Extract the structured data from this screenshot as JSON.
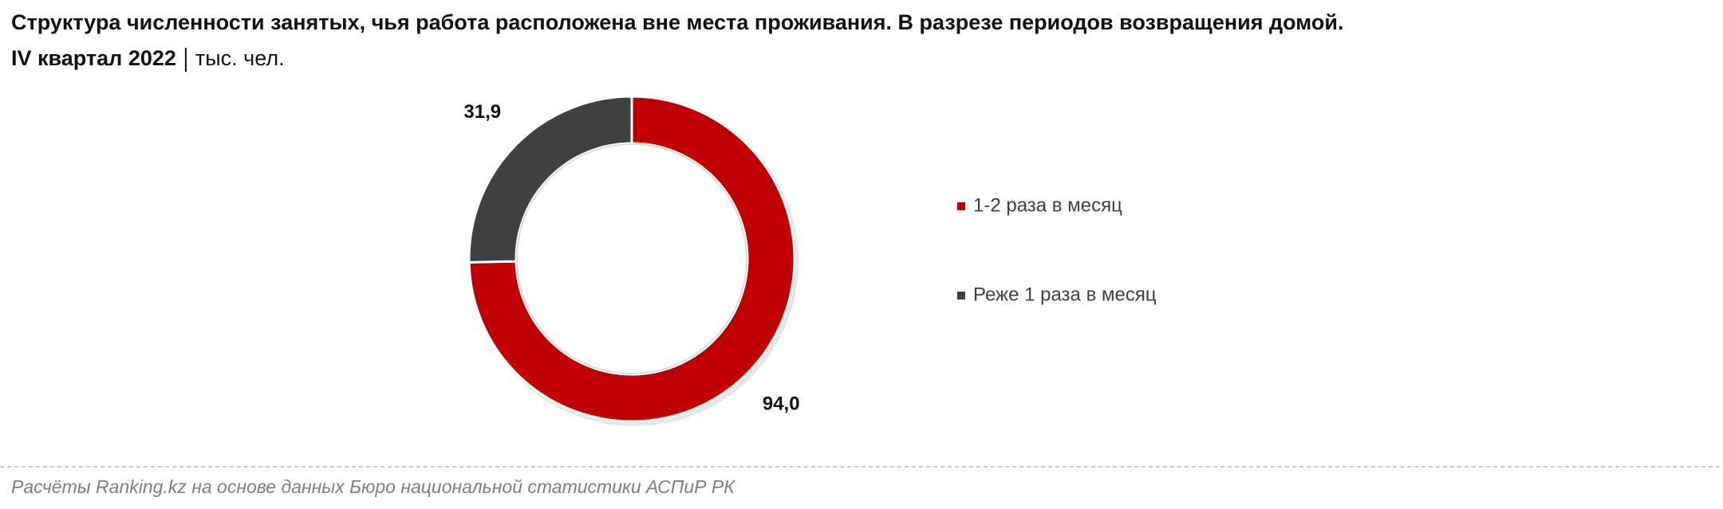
{
  "chart_data": {
    "type": "pie",
    "title": "Структура численности занятых, чья работа расположена вне места проживания. В разрезе периодов возвращения домой.",
    "subtitle": "IV квартал 2022",
    "unit": "тыс. чел.",
    "categories": [
      "1-2 раза в месяц",
      "Реже 1 раза в месяц"
    ],
    "values": [
      94.0,
      31.9
    ],
    "value_labels": [
      "94,0",
      "31,9"
    ],
    "colors": [
      "#c00000",
      "#404040"
    ],
    "source": "Расчёты Ranking.kz на основе данных Бюро национальной статистики АСПиР РК"
  }
}
